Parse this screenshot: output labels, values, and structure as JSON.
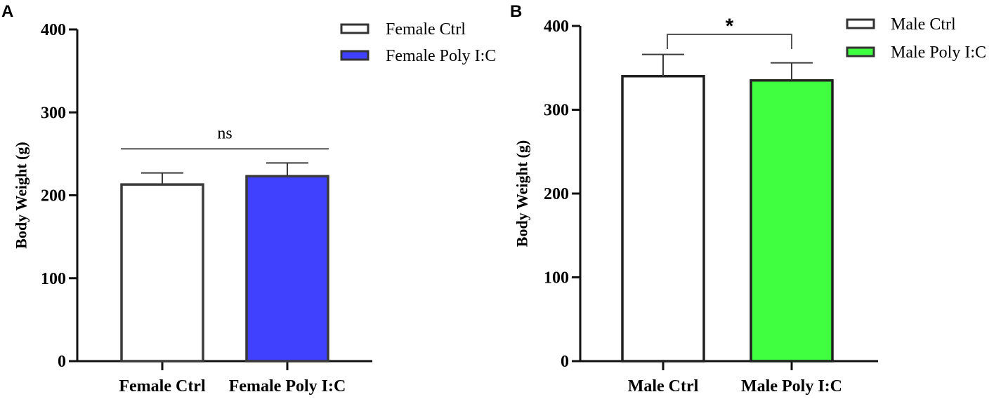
{
  "chart_data": [
    {
      "type": "bar",
      "panel_label": "A",
      "categories": [
        "Female Ctrl",
        "Female Poly I:C"
      ],
      "values": [
        213,
        223
      ],
      "errors": [
        14,
        16
      ],
      "colors": [
        "#ffffff",
        "#4040ff"
      ],
      "legend": [
        "Female Ctrl",
        "Female Poly I:C"
      ],
      "legend_position": "top-right",
      "ylabel": "Body Weight (g)",
      "xlabel": "",
      "ylim": [
        0,
        400
      ],
      "yticks": [
        0,
        100,
        200,
        300,
        400
      ],
      "ytick_labels": [
        "0",
        "100",
        "200",
        "300",
        "400"
      ],
      "significance": {
        "label": "ns",
        "y": 256
      }
    },
    {
      "type": "bar",
      "panel_label": "B",
      "categories": [
        "Male Ctrl",
        "Male Poly I:C"
      ],
      "values": [
        340,
        335
      ],
      "errors": [
        26,
        21
      ],
      "colors": [
        "#ffffff",
        "#40ff40"
      ],
      "legend": [
        "Male Ctrl",
        "Male Poly I:C"
      ],
      "legend_position": "top-right",
      "ylabel": "Body Weight (g)",
      "xlabel": "",
      "ylim": [
        0,
        400
      ],
      "yticks": [
        0,
        100,
        200,
        300,
        400
      ],
      "ytick_labels": [
        "0",
        "100",
        "200",
        "300",
        "400"
      ],
      "significance": {
        "label": "*",
        "y": 390
      }
    }
  ]
}
